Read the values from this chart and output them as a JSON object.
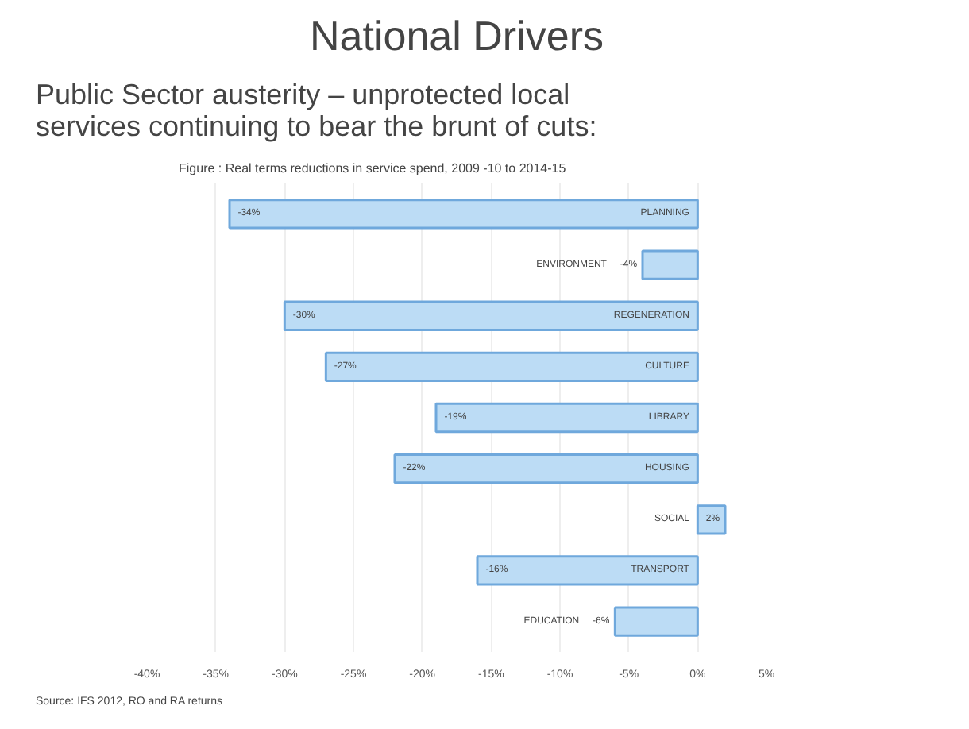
{
  "chart_data": {
    "type": "bar",
    "orientation": "horizontal",
    "title": "National Drivers",
    "subtitle": "Public Sector austerity – unprotected local services continuing to bear the brunt of cuts:",
    "annotations": [
      "Figure : Real terms reductions in service spend, 2009 -10 to 2014-15",
      "Source: IFS 2012, RO and RA returns"
    ],
    "categories": [
      "PLANNING",
      "ENVIRONMENT",
      "REGENERATION",
      "CULTURE",
      "LIBRARY",
      "HOUSING",
      "SOCIAL",
      "TRANSPORT",
      "EDUCATION"
    ],
    "values": [
      -34,
      -4,
      -30,
      -27,
      -19,
      -22,
      2,
      -16,
      -6
    ],
    "value_labels": [
      "-34%",
      "-4%",
      "-30%",
      "-27%",
      "-19%",
      "-22%",
      "2%",
      "-16%",
      "-6%"
    ],
    "color": "#bcdcf5",
    "xlim": [
      -40,
      5
    ],
    "xticks": [
      {
        "value": -40,
        "label": "-40%"
      },
      {
        "value": -35,
        "label": "-35%"
      },
      {
        "value": -30,
        "label": "-30%"
      },
      {
        "value": -25,
        "label": "-25%"
      },
      {
        "value": -20,
        "label": "-20%"
      },
      {
        "value": -15,
        "label": "-15%"
      },
      {
        "value": -10,
        "label": "-10%"
      },
      {
        "value": -5,
        "label": "-5%"
      },
      {
        "value": 0,
        "label": "0%"
      },
      {
        "value": 5,
        "label": "5%"
      }
    ],
    "grid": "x",
    "tick_labels": "x"
  }
}
